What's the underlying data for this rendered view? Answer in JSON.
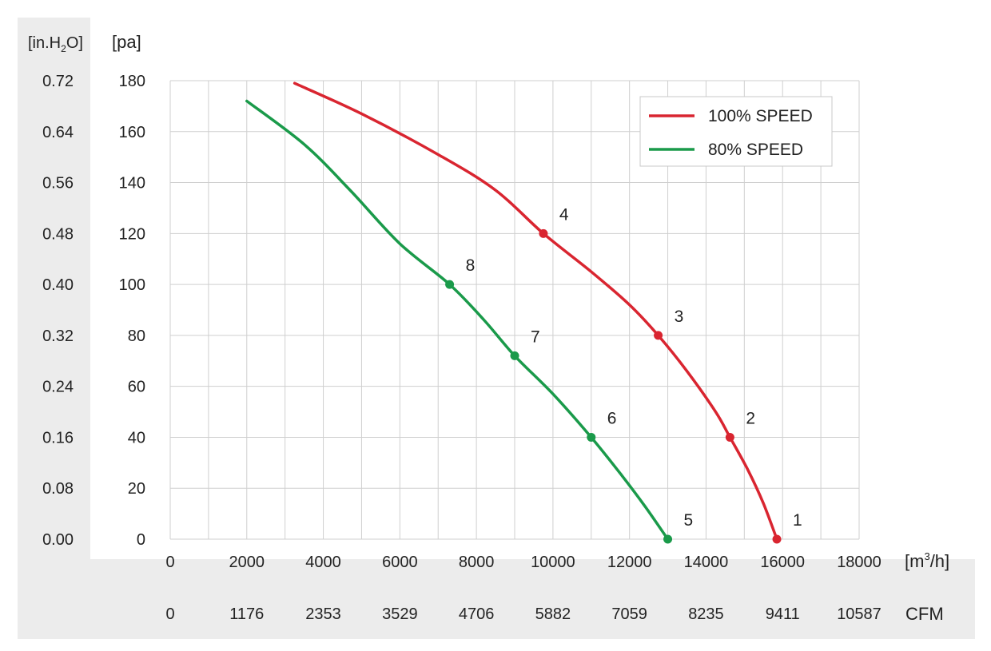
{
  "chart_data": {
    "type": "line",
    "title": "",
    "xlabel": "",
    "ylabel": "",
    "x_unit": "[m³/h]",
    "x_unit_base": "[m",
    "x_unit_sup": "3",
    "x_unit_tail": "/h]",
    "x_secondary_unit": "CFM",
    "y_unit": "[pa]",
    "y_secondary_unit": "[in.H2O]",
    "y_secondary_unit_base": "[in.H",
    "y_secondary_unit_sub": "2",
    "y_secondary_unit_tail": "O]",
    "xlim": [
      0,
      18000
    ],
    "ylim": [
      0,
      180
    ],
    "x_ticks": [
      0,
      2000,
      4000,
      6000,
      8000,
      10000,
      12000,
      14000,
      16000,
      18000
    ],
    "x_secondary_ticks": [
      "0",
      "1176",
      "2353",
      "3529",
      "4706",
      "5882",
      "7059",
      "8235",
      "9411",
      "10587"
    ],
    "y_ticks": [
      0,
      20,
      40,
      60,
      80,
      100,
      120,
      140,
      160,
      180
    ],
    "y_secondary_ticks": [
      "0.00",
      "0.08",
      "0.16",
      "0.24",
      "0.32",
      "0.40",
      "0.48",
      "0.56",
      "0.64",
      "0.72"
    ],
    "grid": true,
    "legend_position": "top-right",
    "series": [
      {
        "name": "100% SPEED",
        "color": "#d92530",
        "x": [
          3250,
          5000,
          7000,
          8500,
          9750,
          11000,
          12000,
          12750,
          13500,
          14250,
          14625,
          15100,
          15500,
          15850
        ],
        "y": [
          179,
          167,
          151,
          137,
          120,
          105,
          92,
          80,
          66,
          50,
          40,
          27,
          14,
          0
        ],
        "markers": [
          {
            "label": "1",
            "x": 15850,
            "y": 0
          },
          {
            "label": "2",
            "x": 14625,
            "y": 40
          },
          {
            "label": "3",
            "x": 12750,
            "y": 80
          },
          {
            "label": "4",
            "x": 9750,
            "y": 120
          }
        ]
      },
      {
        "name": "80% SPEED",
        "color": "#1a9a4a",
        "x": [
          2000,
          3500,
          4700,
          6000,
          7300,
          8200,
          9000,
          10000,
          11000,
          11800,
          12400,
          13000
        ],
        "y": [
          172,
          155,
          137,
          116,
          100,
          86,
          72,
          57,
          40,
          25,
          13,
          0
        ],
        "markers": [
          {
            "label": "5",
            "x": 13000,
            "y": 0
          },
          {
            "label": "6",
            "x": 11000,
            "y": 40
          },
          {
            "label": "7",
            "x": 9000,
            "y": 72
          },
          {
            "label": "8",
            "x": 7300,
            "y": 100
          }
        ]
      }
    ]
  }
}
